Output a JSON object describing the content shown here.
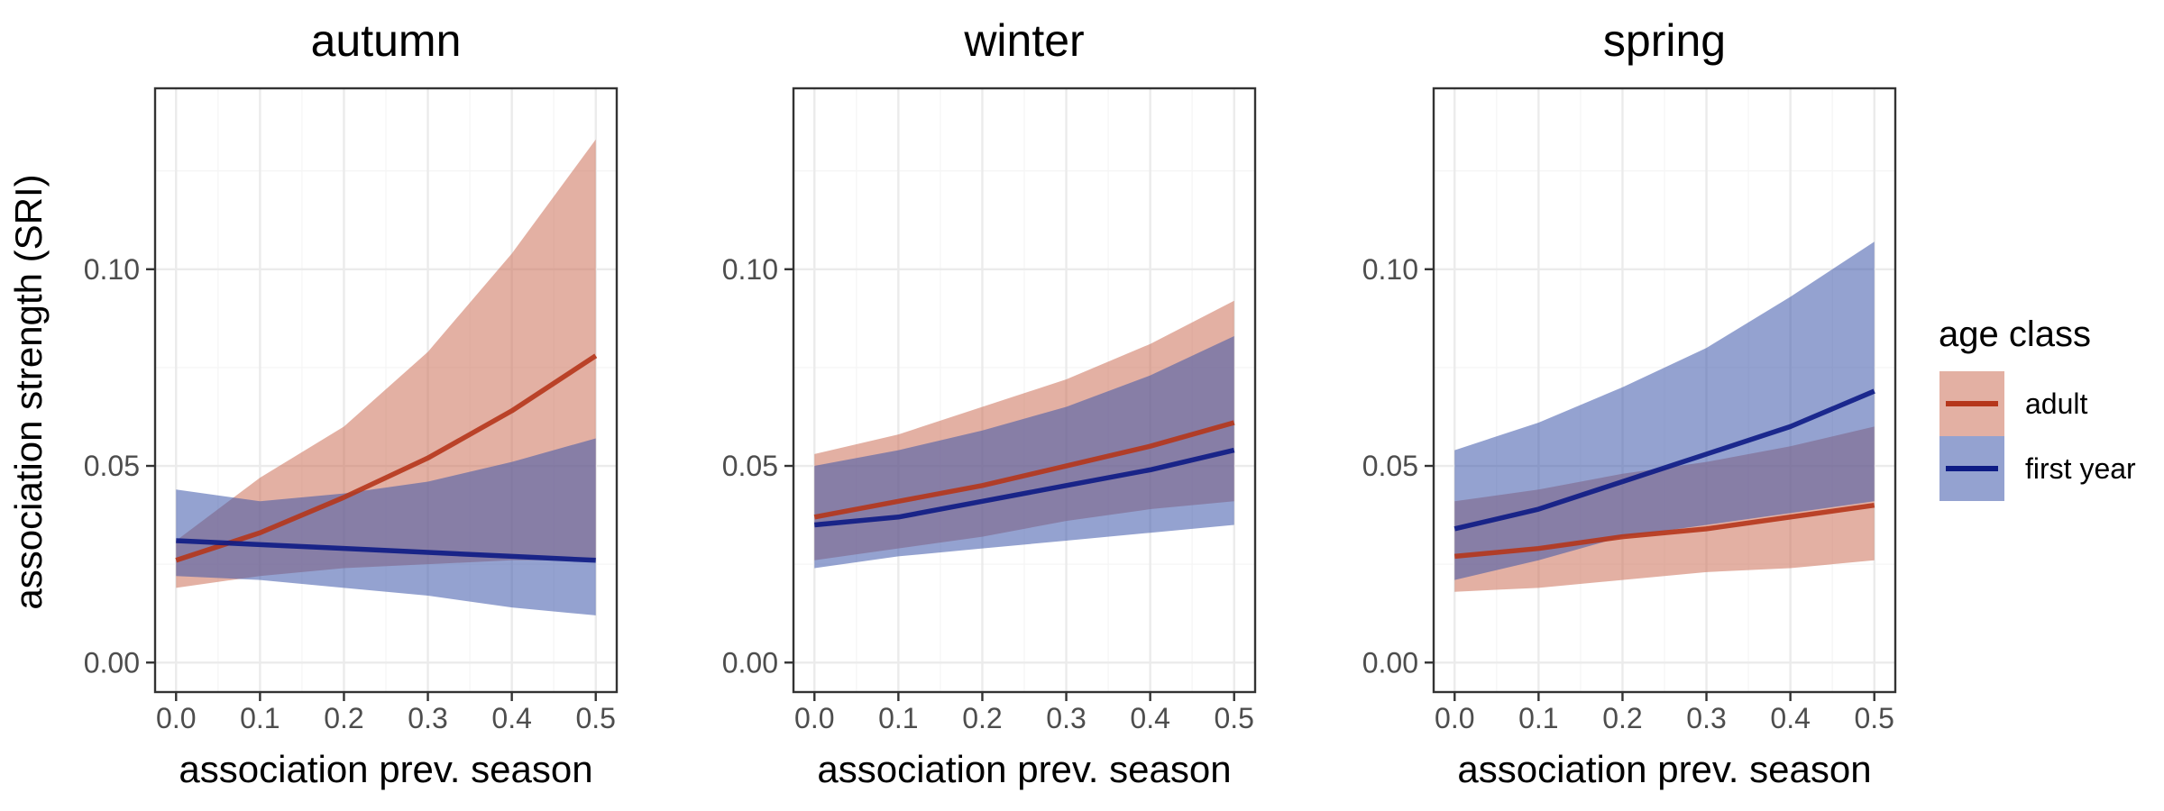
{
  "chart_data": {
    "type": "line",
    "ylabel": "association strength (SRI)",
    "xlabel": "association prev. season",
    "xlim": [
      -0.025,
      0.525
    ],
    "ylim": [
      -0.0075,
      0.146
    ],
    "x_ticks": [
      0.0,
      0.1,
      0.2,
      0.3,
      0.4,
      0.5
    ],
    "x_tick_labels": [
      "0.0",
      "0.1",
      "0.2",
      "0.3",
      "0.4",
      "0.5"
    ],
    "y_ticks": [
      0.0,
      0.05,
      0.1
    ],
    "y_tick_labels": [
      "0.00",
      "0.05",
      "0.10"
    ],
    "grid": true,
    "legend": {
      "title": "age class",
      "placement": "right",
      "entries": [
        {
          "name": "adult",
          "color": "#b5361b",
          "fill": "#cc6f57"
        },
        {
          "name": "first year",
          "color": "#0d1b85",
          "fill": "#3d55aa"
        }
      ]
    },
    "x": [
      0.0,
      0.1,
      0.2,
      0.3,
      0.4,
      0.5
    ],
    "panels": [
      {
        "title": "autumn",
        "series": [
          {
            "name": "adult",
            "y": [
              0.026,
              0.033,
              0.042,
              0.052,
              0.064,
              0.078
            ],
            "lower": [
              0.019,
              0.022,
              0.024,
              0.025,
              0.026,
              0.026
            ],
            "upper": [
              0.031,
              0.047,
              0.06,
              0.079,
              0.104,
              0.133
            ]
          },
          {
            "name": "first year",
            "y": [
              0.031,
              0.03,
              0.029,
              0.028,
              0.027,
              0.026
            ],
            "lower": [
              0.022,
              0.021,
              0.019,
              0.017,
              0.014,
              0.012
            ],
            "upper": [
              0.044,
              0.041,
              0.043,
              0.046,
              0.051,
              0.057
            ]
          }
        ]
      },
      {
        "title": "winter",
        "series": [
          {
            "name": "adult",
            "y": [
              0.037,
              0.041,
              0.045,
              0.05,
              0.055,
              0.061
            ],
            "lower": [
              0.026,
              0.029,
              0.032,
              0.036,
              0.039,
              0.041
            ],
            "upper": [
              0.053,
              0.058,
              0.065,
              0.072,
              0.081,
              0.092
            ]
          },
          {
            "name": "first year",
            "y": [
              0.035,
              0.037,
              0.041,
              0.045,
              0.049,
              0.054
            ],
            "lower": [
              0.024,
              0.027,
              0.029,
              0.031,
              0.033,
              0.035
            ],
            "upper": [
              0.05,
              0.054,
              0.059,
              0.065,
              0.073,
              0.083
            ]
          }
        ]
      },
      {
        "title": "spring",
        "series": [
          {
            "name": "adult",
            "y": [
              0.027,
              0.029,
              0.032,
              0.034,
              0.037,
              0.04
            ],
            "lower": [
              0.018,
              0.019,
              0.021,
              0.023,
              0.024,
              0.026
            ],
            "upper": [
              0.041,
              0.044,
              0.048,
              0.051,
              0.055,
              0.06
            ]
          },
          {
            "name": "first year",
            "y": [
              0.034,
              0.039,
              0.046,
              0.053,
              0.06,
              0.069
            ],
            "lower": [
              0.021,
              0.026,
              0.032,
              0.035,
              0.038,
              0.041
            ],
            "upper": [
              0.054,
              0.061,
              0.07,
              0.08,
              0.093,
              0.107
            ]
          }
        ]
      }
    ]
  }
}
